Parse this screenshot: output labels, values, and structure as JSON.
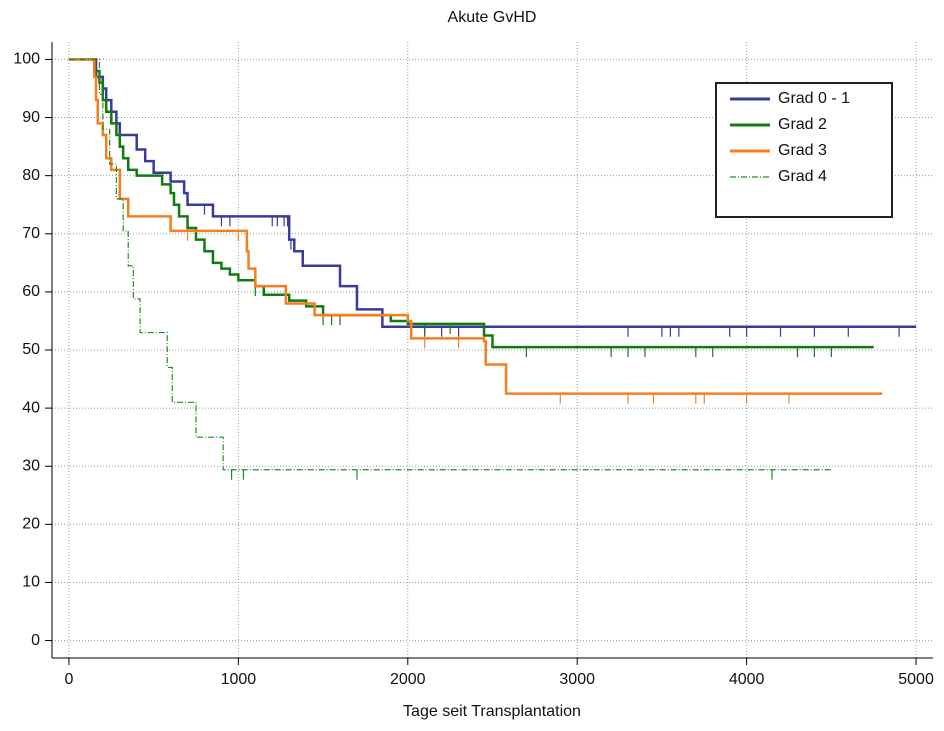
{
  "chart_data": {
    "type": "step",
    "title": "Akute GvHD",
    "x_label": "Tage seit Transplantation",
    "xlim": [
      -100,
      5100
    ],
    "xticks": [
      0,
      1000,
      2000,
      3000,
      4000,
      5000
    ],
    "ylim": [
      -3,
      103
    ],
    "yticks": [
      0,
      10,
      20,
      30,
      40,
      50,
      60,
      70,
      80,
      90,
      100
    ],
    "grid": true,
    "legend": "top-right",
    "series": [
      {
        "name": "Grad 0 - 1",
        "color": "#3a3a9c",
        "style": "solid",
        "x": [
          0,
          160,
          200,
          220,
          250,
          280,
          300,
          400,
          450,
          500,
          600,
          680,
          700,
          850,
          1300,
          1330,
          1380,
          1600,
          1700,
          1850,
          5000
        ],
        "values": [
          100,
          97,
          95,
          93,
          91,
          89,
          87,
          84.5,
          82.5,
          80.5,
          79,
          77,
          75,
          73,
          69,
          67,
          64.5,
          61,
          57,
          54,
          54
        ],
        "censored": [
          800,
          900,
          950,
          1200,
          1230,
          1270,
          1290,
          1310,
          2100,
          2200,
          2300,
          3300,
          3500,
          3550,
          3600,
          3900,
          4000,
          4200,
          4400,
          4600,
          4900
        ]
      },
      {
        "name": "Grad 2",
        "color": "#107c10",
        "style": "solid",
        "x": [
          0,
          150,
          180,
          200,
          220,
          250,
          280,
          300,
          320,
          350,
          400,
          550,
          600,
          620,
          650,
          700,
          750,
          800,
          850,
          900,
          950,
          1000,
          1100,
          1150,
          1300,
          1400,
          1500,
          1900,
          2000,
          2450,
          2500,
          4750
        ],
        "values": [
          100,
          98,
          96,
          93,
          91,
          89,
          87,
          85,
          83,
          81,
          80,
          78.5,
          77,
          75,
          73,
          71,
          69,
          67,
          65,
          64,
          63,
          62,
          61,
          59.5,
          58.5,
          57.5,
          56,
          55,
          54.5,
          52.5,
          50.5,
          50.5
        ],
        "censored": [
          1100,
          1450,
          1500,
          1550,
          1600,
          2100,
          2250,
          2700,
          3200,
          3300,
          3400,
          3700,
          3800,
          4300,
          4400,
          4500
        ]
      },
      {
        "name": "Grad 3",
        "color": "#f57f20",
        "style": "solid",
        "x": [
          0,
          150,
          160,
          170,
          200,
          220,
          250,
          300,
          350,
          600,
          1050,
          1060,
          1100,
          1280,
          1450,
          2000,
          2020,
          2450,
          2460,
          2580,
          4800
        ],
        "values": [
          100,
          97,
          93,
          89,
          87,
          83,
          81,
          76,
          73,
          70.5,
          67,
          64,
          61,
          58,
          56,
          55,
          52,
          51.5,
          47.5,
          42.5,
          42.5
        ],
        "censored": [
          700,
          1000,
          2100,
          2300,
          2900,
          3300,
          3450,
          3700,
          3750,
          4000,
          4250
        ]
      },
      {
        "name": "Grad 4",
        "color": "#228b22",
        "style": "dashdot",
        "x": [
          0,
          180,
          200,
          240,
          280,
          320,
          350,
          380,
          420,
          580,
          610,
          750,
          910,
          4500
        ],
        "values": [
          100,
          94,
          88,
          82,
          76,
          70.5,
          64.5,
          58.8,
          53,
          47,
          41,
          35,
          29.4,
          29.4
        ],
        "censored": [
          960,
          1030,
          1700,
          4150
        ]
      }
    ]
  }
}
